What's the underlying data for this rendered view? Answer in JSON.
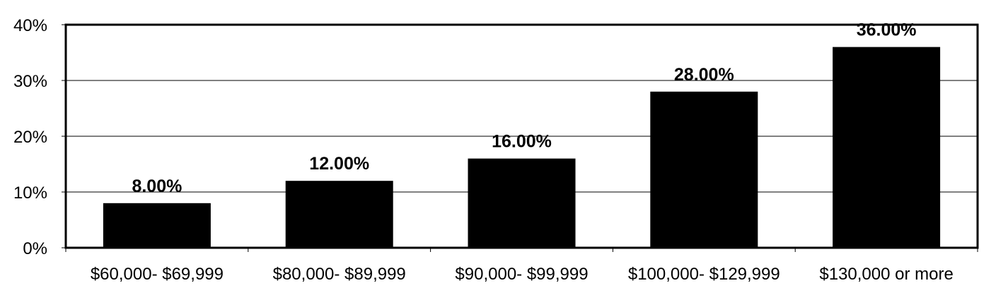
{
  "chart_data": {
    "type": "bar",
    "categories": [
      "$60,000- $69,999",
      "$80,000- $89,999",
      "$90,000- $99,999",
      "$100,000- $129,999",
      "$130,000 or more"
    ],
    "values": [
      8,
      12,
      16,
      28,
      36
    ],
    "data_labels": [
      "8.00%",
      "12.00%",
      "16.00%",
      "28.00%",
      "36.00%"
    ],
    "y_ticks": [
      "0%",
      "10%",
      "20%",
      "30%",
      "40%"
    ],
    "y_tick_values": [
      0,
      10,
      20,
      30,
      40
    ],
    "ylim": [
      0,
      40
    ],
    "grid": true,
    "bar_color": "#000000",
    "title": "",
    "xlabel": "",
    "ylabel": ""
  }
}
